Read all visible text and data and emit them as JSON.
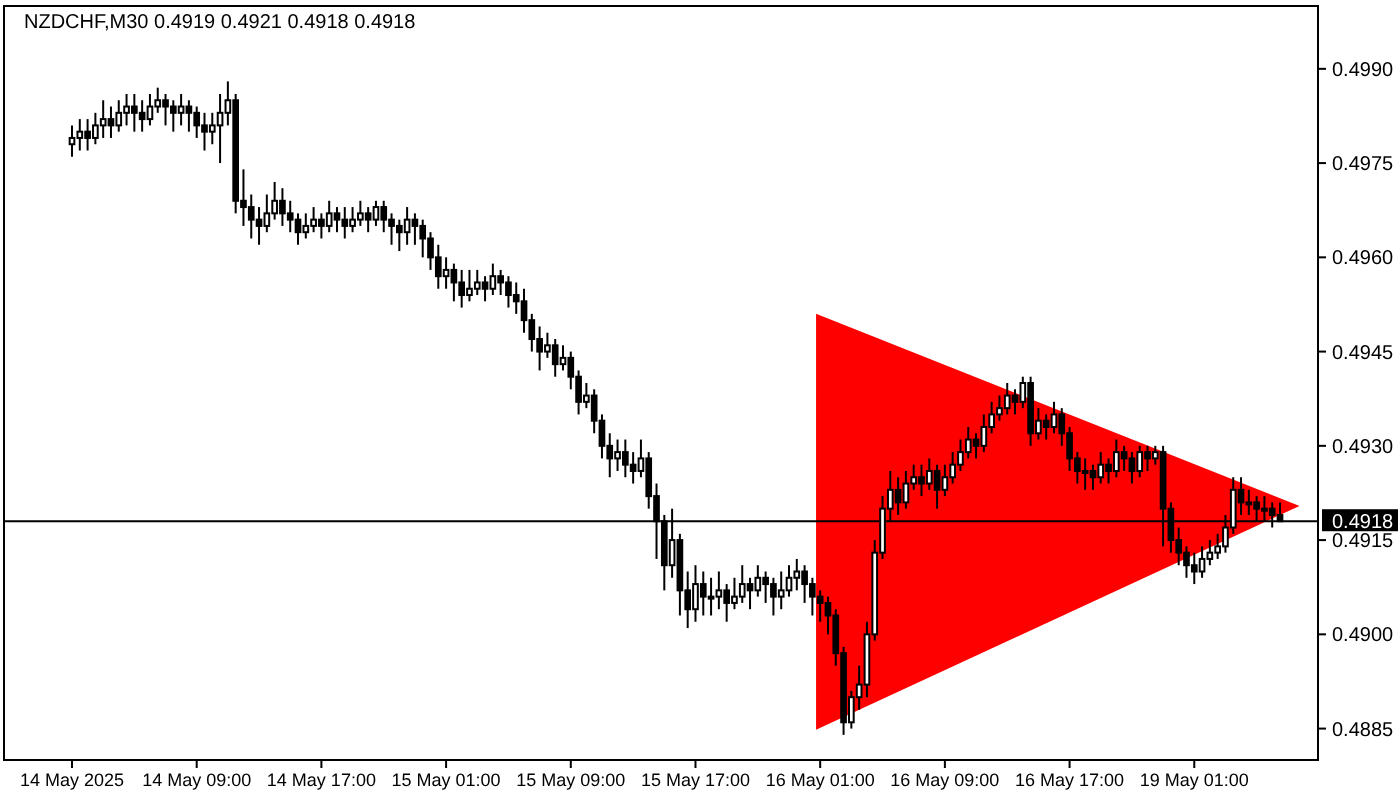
{
  "chart_data": {
    "type": "candlestick",
    "title": "NZDCHF,M30  0.4919 0.4921 0.4918 0.4918",
    "categories": [
      "14 May 2025",
      null,
      null,
      null,
      null,
      null,
      null,
      null,
      null,
      null,
      null,
      null,
      null,
      null,
      null,
      null,
      "14 May 09:00",
      null,
      null,
      null,
      null,
      null,
      null,
      null,
      null,
      null,
      null,
      null,
      null,
      null,
      null,
      null,
      "14 May 17:00",
      null,
      null,
      null,
      null,
      null,
      null,
      null,
      null,
      null,
      null,
      null,
      null,
      null,
      null,
      null,
      "15 May 01:00",
      null,
      null,
      null,
      null,
      null,
      null,
      null,
      null,
      null,
      null,
      null,
      null,
      null,
      null,
      null,
      "15 May 09:00",
      null,
      null,
      null,
      null,
      null,
      null,
      null,
      null,
      null,
      null,
      null,
      null,
      null,
      null,
      null,
      "15 May 17:00",
      null,
      null,
      null,
      null,
      null,
      null,
      null,
      null,
      null,
      null,
      null,
      null,
      null,
      null,
      null,
      "16 May 01:00",
      null,
      null,
      null,
      null,
      null,
      null,
      null,
      null,
      null,
      null,
      null,
      null,
      null,
      null,
      null,
      "16 May 09:00",
      null,
      null,
      null,
      null,
      null,
      null,
      null,
      null,
      null,
      null,
      null,
      null,
      null,
      null,
      null,
      "16 May 17:00",
      null,
      null,
      null,
      null,
      null,
      null,
      null,
      null,
      null,
      null,
      null,
      null,
      null,
      null,
      null,
      "19 May 01:00",
      null,
      null,
      null,
      null,
      null,
      null,
      null,
      null,
      null,
      null,
      null
    ],
    "ohlc": [
      [
        0.4978,
        0.4981,
        0.4976,
        0.4979
      ],
      [
        0.4979,
        0.4982,
        0.4977,
        0.498
      ],
      [
        0.498,
        0.4982,
        0.4977,
        0.4979
      ],
      [
        0.4979,
        0.4983,
        0.4978,
        0.4981
      ],
      [
        0.4981,
        0.4985,
        0.4979,
        0.4982
      ],
      [
        0.4982,
        0.4984,
        0.4979,
        0.4981
      ],
      [
        0.4981,
        0.4985,
        0.498,
        0.4983
      ],
      [
        0.4983,
        0.4986,
        0.4981,
        0.4984
      ],
      [
        0.4984,
        0.4986,
        0.498,
        0.4983
      ],
      [
        0.4983,
        0.4985,
        0.498,
        0.4982
      ],
      [
        0.4982,
        0.4986,
        0.4981,
        0.4984
      ],
      [
        0.4984,
        0.4987,
        0.4983,
        0.4985
      ],
      [
        0.4985,
        0.4986,
        0.4981,
        0.4984
      ],
      [
        0.4984,
        0.4985,
        0.498,
        0.4983
      ],
      [
        0.4983,
        0.4986,
        0.4981,
        0.4984
      ],
      [
        0.4984,
        0.4985,
        0.498,
        0.4983
      ],
      [
        0.4983,
        0.4984,
        0.4979,
        0.4981
      ],
      [
        0.4981,
        0.4983,
        0.4977,
        0.498
      ],
      [
        0.498,
        0.4983,
        0.4978,
        0.4981
      ],
      [
        0.4981,
        0.4986,
        0.4975,
        0.4983
      ],
      [
        0.4983,
        0.4988,
        0.4981,
        0.4985
      ],
      [
        0.4985,
        0.4986,
        0.4967,
        0.4969
      ],
      [
        0.4969,
        0.4974,
        0.4965,
        0.4968
      ],
      [
        0.4968,
        0.497,
        0.4963,
        0.4966
      ],
      [
        0.4966,
        0.4968,
        0.4962,
        0.4965
      ],
      [
        0.4965,
        0.497,
        0.4964,
        0.4967
      ],
      [
        0.4967,
        0.4972,
        0.4966,
        0.4969
      ],
      [
        0.4969,
        0.4971,
        0.4965,
        0.4967
      ],
      [
        0.4967,
        0.4969,
        0.4964,
        0.4966
      ],
      [
        0.4966,
        0.4967,
        0.4962,
        0.4964
      ],
      [
        0.4964,
        0.4967,
        0.4963,
        0.4965
      ],
      [
        0.4965,
        0.4968,
        0.4964,
        0.4966
      ],
      [
        0.4966,
        0.4967,
        0.4963,
        0.4965
      ],
      [
        0.4965,
        0.4969,
        0.4964,
        0.4967
      ],
      [
        0.4967,
        0.4968,
        0.4964,
        0.4966
      ],
      [
        0.4966,
        0.4968,
        0.4963,
        0.4965
      ],
      [
        0.4965,
        0.4968,
        0.4964,
        0.4966
      ],
      [
        0.4966,
        0.4969,
        0.4965,
        0.4967
      ],
      [
        0.4967,
        0.4968,
        0.4964,
        0.4966
      ],
      [
        0.4966,
        0.4969,
        0.4965,
        0.4968
      ],
      [
        0.4968,
        0.4969,
        0.4964,
        0.4966
      ],
      [
        0.4966,
        0.4967,
        0.4962,
        0.4965
      ],
      [
        0.4965,
        0.4966,
        0.4961,
        0.4964
      ],
      [
        0.4964,
        0.4968,
        0.4962,
        0.4966
      ],
      [
        0.4966,
        0.4967,
        0.4962,
        0.4965
      ],
      [
        0.4965,
        0.4966,
        0.496,
        0.4963
      ],
      [
        0.4963,
        0.4964,
        0.4958,
        0.496
      ],
      [
        0.496,
        0.4962,
        0.4955,
        0.4957
      ],
      [
        0.4957,
        0.496,
        0.4955,
        0.4958
      ],
      [
        0.4958,
        0.4959,
        0.4953,
        0.4956
      ],
      [
        0.4956,
        0.4958,
        0.4952,
        0.4954
      ],
      [
        0.4954,
        0.4958,
        0.4953,
        0.4955
      ],
      [
        0.4955,
        0.4958,
        0.4954,
        0.4956
      ],
      [
        0.4956,
        0.4957,
        0.4953,
        0.4955
      ],
      [
        0.4955,
        0.4959,
        0.4954,
        0.4957
      ],
      [
        0.4957,
        0.4958,
        0.4954,
        0.4956
      ],
      [
        0.4956,
        0.4957,
        0.4952,
        0.4954
      ],
      [
        0.4954,
        0.4956,
        0.4951,
        0.4953
      ],
      [
        0.4953,
        0.4955,
        0.4948,
        0.495
      ],
      [
        0.495,
        0.4951,
        0.4945,
        0.4947
      ],
      [
        0.4947,
        0.4949,
        0.4942,
        0.4945
      ],
      [
        0.4945,
        0.4948,
        0.4944,
        0.4946
      ],
      [
        0.4946,
        0.4947,
        0.4941,
        0.4943
      ],
      [
        0.4943,
        0.4946,
        0.4942,
        0.4944
      ],
      [
        0.4944,
        0.4945,
        0.4939,
        0.4941
      ],
      [
        0.4941,
        0.4942,
        0.4935,
        0.4937
      ],
      [
        0.4937,
        0.494,
        0.4936,
        0.4938
      ],
      [
        0.4938,
        0.4939,
        0.4932,
        0.4934
      ],
      [
        0.4934,
        0.4935,
        0.4928,
        0.493
      ],
      [
        0.493,
        0.4932,
        0.4925,
        0.4928
      ],
      [
        0.4928,
        0.4931,
        0.4926,
        0.4929
      ],
      [
        0.4929,
        0.4931,
        0.4925,
        0.4927
      ],
      [
        0.4927,
        0.4929,
        0.4924,
        0.4926
      ],
      [
        0.4926,
        0.4931,
        0.4925,
        0.4928
      ],
      [
        0.4928,
        0.4929,
        0.492,
        0.4922
      ],
      [
        0.4922,
        0.4924,
        0.4912,
        0.4918
      ],
      [
        0.4918,
        0.4919,
        0.4907,
        0.4911
      ],
      [
        0.4911,
        0.492,
        0.4909,
        0.4915
      ],
      [
        0.4915,
        0.4916,
        0.4903,
        0.4907
      ],
      [
        0.4907,
        0.491,
        0.4901,
        0.4904
      ],
      [
        0.4904,
        0.4911,
        0.4902,
        0.4908
      ],
      [
        0.4908,
        0.491,
        0.4903,
        0.4906
      ],
      [
        0.4906,
        0.4909,
        0.4903,
        0.4906
      ],
      [
        0.4906,
        0.491,
        0.4904,
        0.4907
      ],
      [
        0.4907,
        0.4908,
        0.4902,
        0.4905
      ],
      [
        0.4905,
        0.4909,
        0.4904,
        0.4906
      ],
      [
        0.4906,
        0.4911,
        0.4905,
        0.4908
      ],
      [
        0.4908,
        0.4909,
        0.4904,
        0.4907
      ],
      [
        0.4907,
        0.4911,
        0.4906,
        0.4909
      ],
      [
        0.4909,
        0.491,
        0.4905,
        0.4908
      ],
      [
        0.4908,
        0.4909,
        0.4903,
        0.4906
      ],
      [
        0.4906,
        0.491,
        0.4904,
        0.4907
      ],
      [
        0.4907,
        0.4911,
        0.4906,
        0.4909
      ],
      [
        0.4909,
        0.4912,
        0.4907,
        0.491
      ],
      [
        0.491,
        0.4911,
        0.4905,
        0.4908
      ],
      [
        0.4908,
        0.4909,
        0.4903,
        0.4906
      ],
      [
        0.4906,
        0.4907,
        0.4902,
        0.4905
      ],
      [
        0.4905,
        0.4906,
        0.49,
        0.4903
      ],
      [
        0.4903,
        0.4904,
        0.4895,
        0.4897
      ],
      [
        0.4897,
        0.4898,
        0.4884,
        0.4886
      ],
      [
        0.4886,
        0.4891,
        0.4885,
        0.489
      ],
      [
        0.489,
        0.4895,
        0.4888,
        0.4892
      ],
      [
        0.4892,
        0.4902,
        0.489,
        0.49
      ],
      [
        0.49,
        0.4915,
        0.4899,
        0.4913
      ],
      [
        0.4913,
        0.4922,
        0.4912,
        0.492
      ],
      [
        0.492,
        0.4926,
        0.4918,
        0.4923
      ],
      [
        0.4923,
        0.4925,
        0.4919,
        0.4921
      ],
      [
        0.4921,
        0.4926,
        0.492,
        0.4924
      ],
      [
        0.4924,
        0.4927,
        0.4923,
        0.4925
      ],
      [
        0.4925,
        0.4927,
        0.4922,
        0.4924
      ],
      [
        0.4924,
        0.4928,
        0.4923,
        0.4926
      ],
      [
        0.4926,
        0.4927,
        0.492,
        0.4923
      ],
      [
        0.4923,
        0.4927,
        0.4922,
        0.4925
      ],
      [
        0.4925,
        0.4929,
        0.4924,
        0.4927
      ],
      [
        0.4927,
        0.4931,
        0.4926,
        0.4929
      ],
      [
        0.4929,
        0.4933,
        0.4928,
        0.4931
      ],
      [
        0.4931,
        0.4932,
        0.4928,
        0.493
      ],
      [
        0.493,
        0.4935,
        0.4929,
        0.4933
      ],
      [
        0.4933,
        0.4937,
        0.4932,
        0.4935
      ],
      [
        0.4935,
        0.4938,
        0.4934,
        0.4936
      ],
      [
        0.4936,
        0.494,
        0.4935,
        0.4938
      ],
      [
        0.4938,
        0.4939,
        0.4935,
        0.4937
      ],
      [
        0.4937,
        0.4941,
        0.4936,
        0.494
      ],
      [
        0.494,
        0.4941,
        0.493,
        0.4932
      ],
      [
        0.4932,
        0.4936,
        0.4931,
        0.4934
      ],
      [
        0.4934,
        0.4935,
        0.4931,
        0.4933
      ],
      [
        0.4933,
        0.4937,
        0.4932,
        0.4935
      ],
      [
        0.4935,
        0.4936,
        0.493,
        0.4932
      ],
      [
        0.4932,
        0.4933,
        0.4926,
        0.4928
      ],
      [
        0.4928,
        0.4929,
        0.4924,
        0.4926
      ],
      [
        0.4926,
        0.4928,
        0.4923,
        0.4926
      ],
      [
        0.4926,
        0.4927,
        0.4923,
        0.4925
      ],
      [
        0.4925,
        0.4929,
        0.4924,
        0.4927
      ],
      [
        0.4927,
        0.4928,
        0.4924,
        0.4926
      ],
      [
        0.4926,
        0.4931,
        0.4925,
        0.4929
      ],
      [
        0.4929,
        0.493,
        0.4926,
        0.4928
      ],
      [
        0.4928,
        0.4929,
        0.4924,
        0.4926
      ],
      [
        0.4926,
        0.493,
        0.4925,
        0.4929
      ],
      [
        0.4929,
        0.493,
        0.4926,
        0.4928
      ],
      [
        0.4928,
        0.493,
        0.4927,
        0.4929
      ],
      [
        0.4929,
        0.493,
        0.4914,
        0.492
      ],
      [
        0.492,
        0.4921,
        0.4913,
        0.4915
      ],
      [
        0.4915,
        0.4917,
        0.4911,
        0.4913
      ],
      [
        0.4913,
        0.4914,
        0.4909,
        0.4911
      ],
      [
        0.4911,
        0.4913,
        0.4908,
        0.491
      ],
      [
        0.491,
        0.4914,
        0.4909,
        0.4912
      ],
      [
        0.4912,
        0.4915,
        0.4911,
        0.4913
      ],
      [
        0.4913,
        0.4916,
        0.4912,
        0.4914
      ],
      [
        0.4914,
        0.4919,
        0.4913,
        0.4917
      ],
      [
        0.4917,
        0.4925,
        0.4916,
        0.4923
      ],
      [
        0.4923,
        0.4925,
        0.4919,
        0.4921
      ],
      [
        0.4921,
        0.4923,
        0.4919,
        0.4921
      ],
      [
        0.4921,
        0.4922,
        0.4918,
        0.492
      ],
      [
        0.492,
        0.4922,
        0.4918,
        0.492
      ],
      [
        0.492,
        0.4921,
        0.4917,
        0.4919
      ],
      [
        0.4919,
        0.4921,
        0.4918,
        0.4918
      ]
    ],
    "ylim": [
      0.488,
      0.5
    ],
    "yticks": [
      0.4885,
      {
        "value": 0.49,
        "label": "0.4900"
      },
      0.4915,
      {
        "value": 0.493,
        "label": "0.4930"
      },
      0.4945,
      {
        "value": 0.496,
        "label": "0.4960"
      },
      0.4975,
      {
        "value": 0.499,
        "label": "0.4990"
      }
    ],
    "ref_lines": [
      {
        "axis": "y",
        "value": 0.4918,
        "label": "0.4918",
        "color": "#000000"
      }
    ],
    "grid": false
  }
}
